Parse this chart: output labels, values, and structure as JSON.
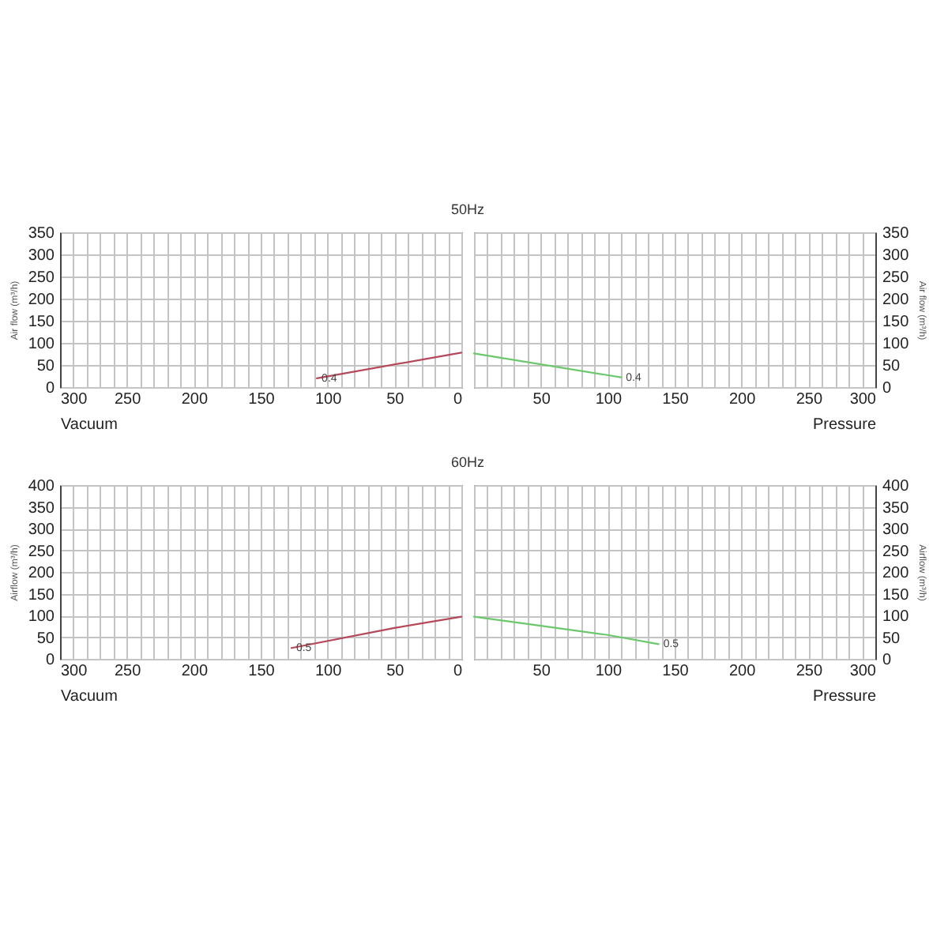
{
  "chart_data": [
    {
      "type": "line",
      "title": "50Hz",
      "xlabel": "Vacuum",
      "ylabel": "Air flow (m³/h)",
      "xlim": [
        300,
        0
      ],
      "xticks": [
        0,
        {
          "value": 10,
          "label": null
        },
        {
          "value": 20,
          "label": null
        },
        {
          "value": 30,
          "label": null
        },
        {
          "value": 40,
          "label": null
        },
        50,
        {
          "value": 60,
          "label": null
        },
        {
          "value": 70,
          "label": null
        },
        {
          "value": 80,
          "label": null
        },
        {
          "value": 90,
          "label": null
        },
        100,
        {
          "value": 110,
          "label": null
        },
        {
          "value": 120,
          "label": null
        },
        {
          "value": 130,
          "label": null
        },
        {
          "value": 140,
          "label": null
        },
        150,
        {
          "value": 160,
          "label": null
        },
        {
          "value": 170,
          "label": null
        },
        {
          "value": 180,
          "label": null
        },
        {
          "value": 190,
          "label": null
        },
        200,
        {
          "value": 210,
          "label": null
        },
        {
          "value": 220,
          "label": null
        },
        {
          "value": 230,
          "label": null
        },
        {
          "value": 240,
          "label": null
        },
        250,
        {
          "value": 260,
          "label": null
        },
        {
          "value": 270,
          "label": null
        },
        {
          "value": 280,
          "label": null
        },
        {
          "value": 290,
          "label": null
        },
        300
      ],
      "ylim": [
        0,
        350
      ],
      "yticks": [
        0,
        50,
        100,
        150,
        200,
        250,
        300,
        350
      ],
      "grid": true,
      "series": [
        {
          "color": "#b5485a",
          "x": [
            0,
            108
          ],
          "values": [
            78,
            20
          ]
        }
      ],
      "annotations": [
        {
          "text": "0.4",
          "x": 108,
          "y": 20
        }
      ]
    },
    {
      "type": "line",
      "ylabel": "Air flow (m³/h)",
      "xlabel": "Pressure",
      "xlim": [
        0,
        300
      ],
      "xticks": [
        {
          "value": 0,
          "label": null
        },
        {
          "value": 10,
          "label": null
        },
        {
          "value": 20,
          "label": null
        },
        {
          "value": 30,
          "label": null
        },
        {
          "value": 40,
          "label": null
        },
        50,
        {
          "value": 60,
          "label": null
        },
        {
          "value": 70,
          "label": null
        },
        {
          "value": 80,
          "label": null
        },
        {
          "value": 90,
          "label": null
        },
        100,
        {
          "value": 110,
          "label": null
        },
        {
          "value": 120,
          "label": null
        },
        {
          "value": 130,
          "label": null
        },
        {
          "value": 140,
          "label": null
        },
        150,
        {
          "value": 160,
          "label": null
        },
        {
          "value": 170,
          "label": null
        },
        {
          "value": 180,
          "label": null
        },
        {
          "value": 190,
          "label": null
        },
        200,
        {
          "value": 210,
          "label": null
        },
        {
          "value": 220,
          "label": null
        },
        {
          "value": 230,
          "label": null
        },
        {
          "value": 240,
          "label": null
        },
        250,
        {
          "value": 260,
          "label": null
        },
        {
          "value": 270,
          "label": null
        },
        {
          "value": 280,
          "label": null
        },
        {
          "value": 290,
          "label": null
        },
        300
      ],
      "ylim": [
        0,
        350
      ],
      "yticks": [
        0,
        50,
        100,
        150,
        200,
        250,
        300,
        350
      ],
      "grid": true,
      "series": [
        {
          "color": "#6cc86c",
          "x": [
            0,
            110
          ],
          "values": [
            76,
            22
          ]
        }
      ],
      "annotations": [
        {
          "text": "0.4",
          "x": 110,
          "y": 22
        }
      ]
    },
    {
      "type": "line",
      "title": "60Hz",
      "xlabel": "Vacuum",
      "ylabel": "Airflow (m³/h)",
      "xlim": [
        300,
        0
      ],
      "xticks": [
        0,
        {
          "value": 10,
          "label": null
        },
        {
          "value": 20,
          "label": null
        },
        {
          "value": 30,
          "label": null
        },
        {
          "value": 40,
          "label": null
        },
        50,
        {
          "value": 60,
          "label": null
        },
        {
          "value": 70,
          "label": null
        },
        {
          "value": 80,
          "label": null
        },
        {
          "value": 90,
          "label": null
        },
        100,
        {
          "value": 110,
          "label": null
        },
        {
          "value": 120,
          "label": null
        },
        {
          "value": 130,
          "label": null
        },
        {
          "value": 140,
          "label": null
        },
        150,
        {
          "value": 160,
          "label": null
        },
        {
          "value": 170,
          "label": null
        },
        {
          "value": 180,
          "label": null
        },
        {
          "value": 190,
          "label": null
        },
        200,
        {
          "value": 210,
          "label": null
        },
        {
          "value": 220,
          "label": null
        },
        {
          "value": 230,
          "label": null
        },
        {
          "value": 240,
          "label": null
        },
        250,
        {
          "value": 260,
          "label": null
        },
        {
          "value": 270,
          "label": null
        },
        {
          "value": 280,
          "label": null
        },
        {
          "value": 290,
          "label": null
        },
        300
      ],
      "ylim": [
        0,
        400
      ],
      "yticks": [
        0,
        50,
        100,
        150,
        200,
        250,
        300,
        350,
        400
      ],
      "grid": true,
      "series": [
        {
          "color": "#b5485a",
          "x": [
            0,
            50,
            127
          ],
          "values": [
            97,
            71,
            25
          ]
        }
      ],
      "annotations": [
        {
          "text": "0.5",
          "x": 127,
          "y": 25
        }
      ]
    },
    {
      "type": "line",
      "ylabel": "Airflow (m³/h)",
      "xlabel": "Pressure",
      "xlim": [
        0,
        300
      ],
      "xticks": [
        {
          "value": 0,
          "label": null
        },
        {
          "value": 10,
          "label": null
        },
        {
          "value": 20,
          "label": null
        },
        {
          "value": 30,
          "label": null
        },
        {
          "value": 40,
          "label": null
        },
        50,
        {
          "value": 60,
          "label": null
        },
        {
          "value": 70,
          "label": null
        },
        {
          "value": 80,
          "label": null
        },
        {
          "value": 90,
          "label": null
        },
        100,
        {
          "value": 110,
          "label": null
        },
        {
          "value": 120,
          "label": null
        },
        {
          "value": 130,
          "label": null
        },
        {
          "value": 140,
          "label": null
        },
        150,
        {
          "value": 160,
          "label": null
        },
        {
          "value": 170,
          "label": null
        },
        {
          "value": 180,
          "label": null
        },
        {
          "value": 190,
          "label": null
        },
        200,
        {
          "value": 210,
          "label": null
        },
        {
          "value": 220,
          "label": null
        },
        {
          "value": 230,
          "label": null
        },
        {
          "value": 240,
          "label": null
        },
        250,
        {
          "value": 260,
          "label": null
        },
        {
          "value": 270,
          "label": null
        },
        {
          "value": 280,
          "label": null
        },
        {
          "value": 290,
          "label": null
        },
        300
      ],
      "ylim": [
        0,
        400
      ],
      "yticks": [
        0,
        50,
        100,
        150,
        200,
        250,
        300,
        350,
        400
      ],
      "grid": true,
      "series": [
        {
          "color": "#6cc86c",
          "x": [
            0,
            50,
            100,
            138
          ],
          "values": [
            97,
            76,
            55,
            34
          ]
        }
      ],
      "annotations": [
        {
          "text": "0.5",
          "x": 138,
          "y": 34
        }
      ]
    }
  ]
}
